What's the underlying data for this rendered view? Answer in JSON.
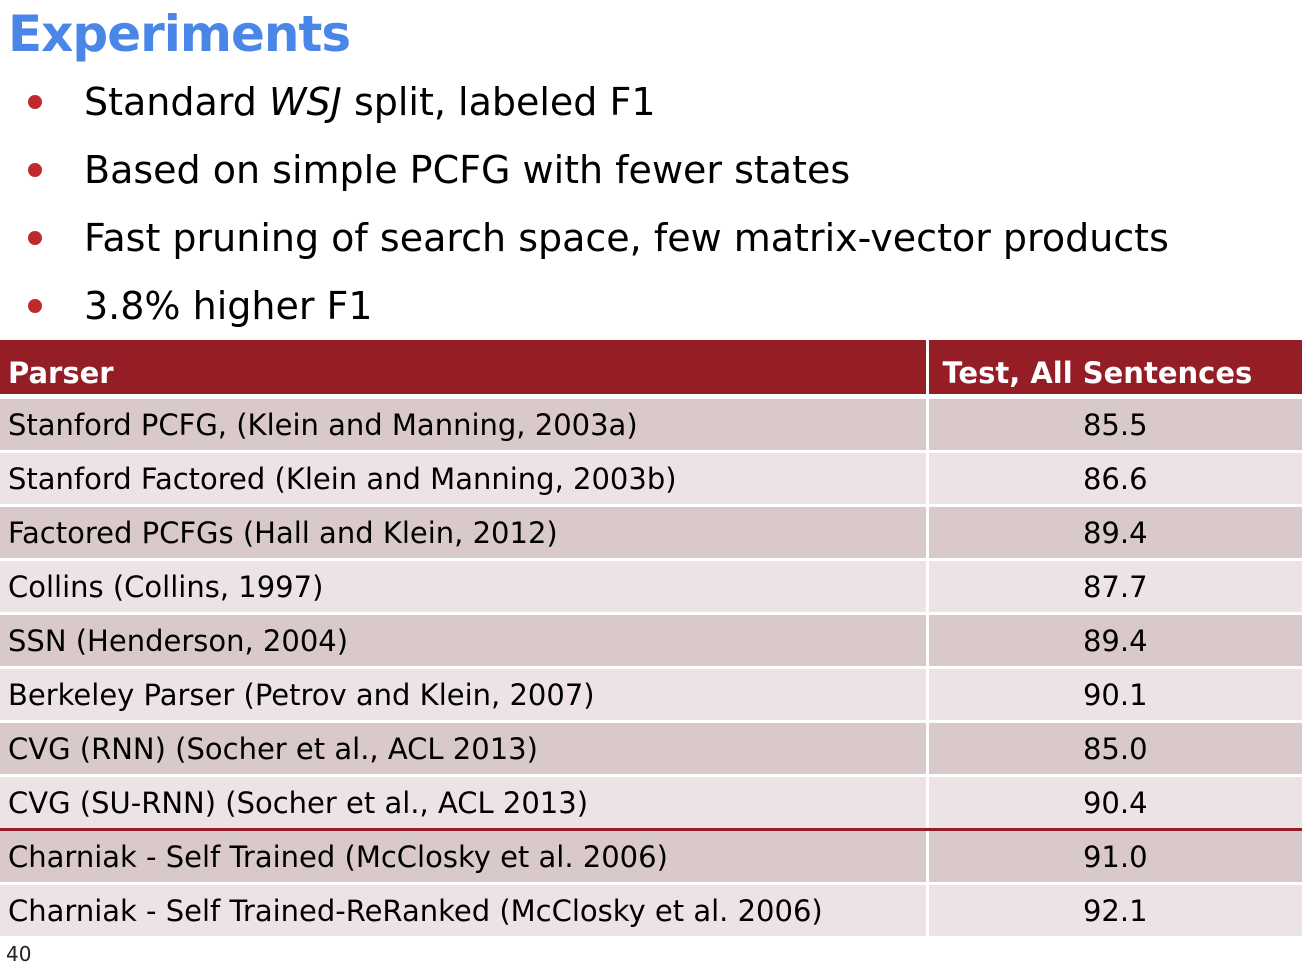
{
  "slide": {
    "title": "Experiments",
    "number": "40"
  },
  "bullets": [
    {
      "before": "Standard ",
      "em": "WSJ",
      "after": " split, labeled F1"
    },
    {
      "before": "Based on simple PCFG with fewer states",
      "em": "",
      "after": ""
    },
    {
      "before": "Fast pruning of search space, few matrix-vector products",
      "em": "",
      "after": ""
    },
    {
      "before": "3.8% higher F1",
      "em": "",
      "after": ""
    }
  ],
  "table": {
    "headers": [
      "Parser",
      "Test, All Sentences"
    ],
    "rows": [
      {
        "parser": "Stanford PCFG, (Klein and Manning, 2003a)",
        "score": "85.5"
      },
      {
        "parser": "Stanford Factored (Klein and Manning, 2003b)",
        "score": "86.6"
      },
      {
        "parser": "Factored PCFGs (Hall and Klein, 2012)",
        "score": "89.4"
      },
      {
        "parser": "Collins (Collins, 1997)",
        "score": "87.7"
      },
      {
        "parser": "SSN (Henderson, 2004)",
        "score": "89.4"
      },
      {
        "parser": "Berkeley Parser (Petrov and Klein, 2007)",
        "score": "90.1"
      },
      {
        "parser": "CVG (RNN) (Socher et al., ACL 2013)",
        "score": "85.0"
      },
      {
        "parser": "CVG (SU-RNN) (Socher et al., ACL 2013)",
        "score": "90.4"
      },
      {
        "parser": "Charniak - Self Trained (McClosky et al. 2006)",
        "score": "91.0"
      },
      {
        "parser": "Charniak - Self Trained-ReRanked (McClosky et al. 2006)",
        "score": "92.1"
      }
    ]
  },
  "colors": {
    "title": "#4a86e8",
    "bullet": "#c0292b",
    "header_bg": "#941d26",
    "row_dark": "#d9c9ca",
    "row_light": "#ede3e4"
  }
}
